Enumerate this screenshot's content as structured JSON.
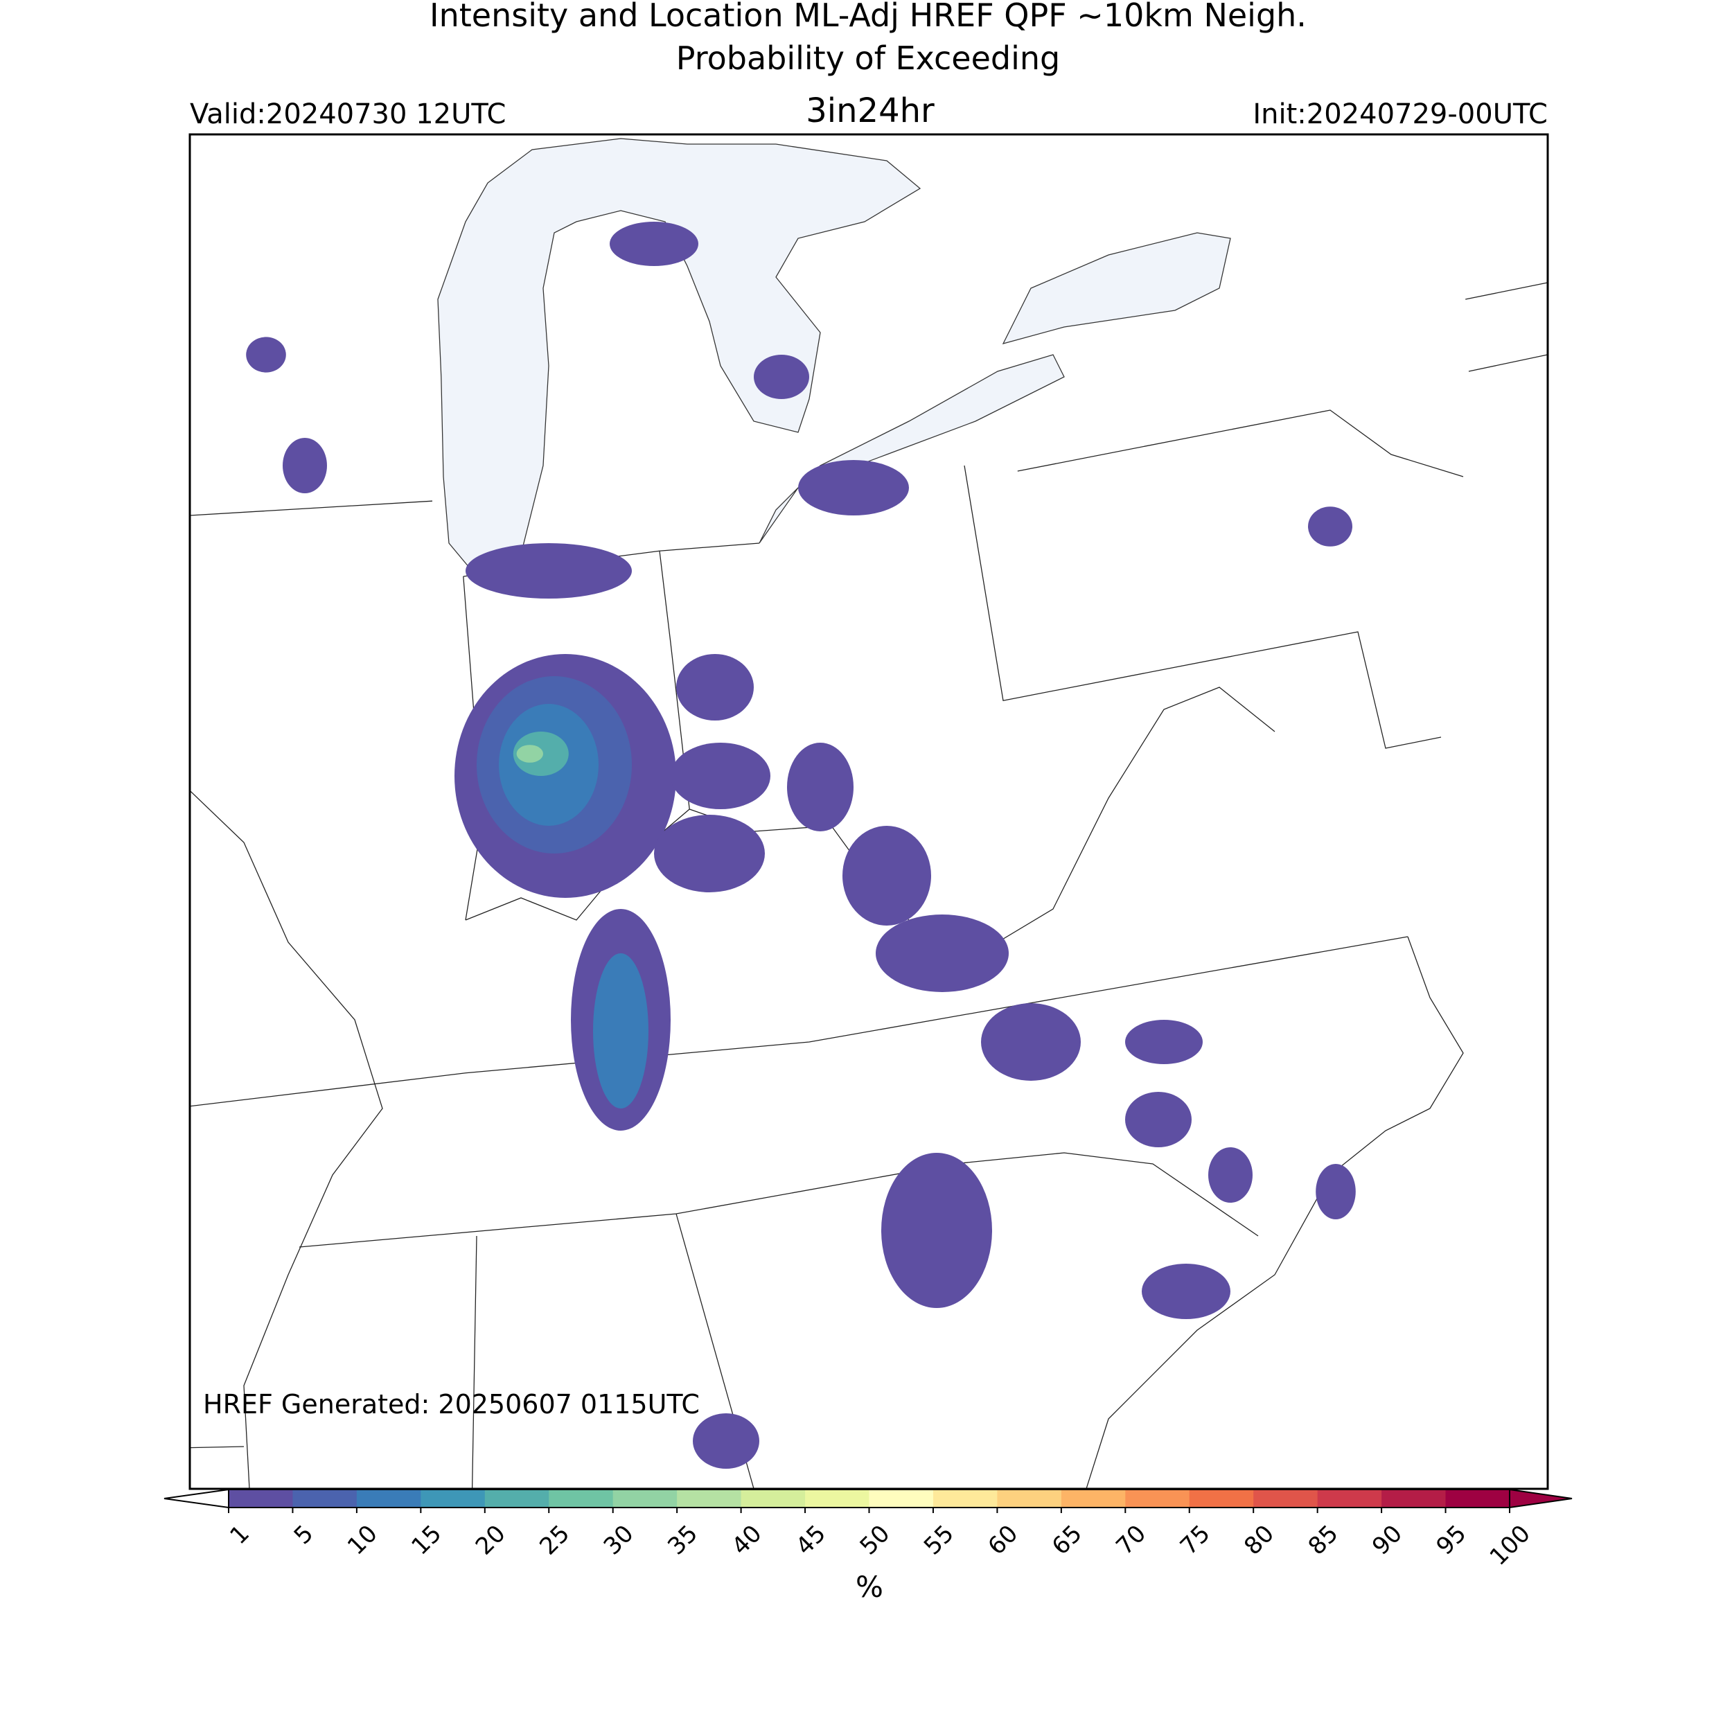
{
  "header": {
    "title_lines": [
      "Intensity and Location ML-Adj HREF QPF ~10km Neigh.",
      "Probability of Exceeding"
    ],
    "threshold": "3in24hr",
    "valid": "Valid:20240730 12UTC",
    "init": "Init:20240729-00UTC"
  },
  "map": {
    "generated": "HREF Generated: 20250607 0115UTC"
  },
  "colorbar": {
    "ticks": [
      1,
      5,
      10,
      15,
      20,
      25,
      30,
      35,
      40,
      45,
      50,
      55,
      60,
      65,
      70,
      75,
      80,
      85,
      90,
      95,
      100
    ],
    "colors": [
      "#5e4fa2",
      "#4b63ae",
      "#3a7cb8",
      "#3e97b7",
      "#54aeab",
      "#6fc4a4",
      "#92d3a4",
      "#b5e1a3",
      "#d5ee9b",
      "#ecf7a0",
      "#fffdbe",
      "#fee99a",
      "#fdd17f",
      "#fdb466",
      "#f99355",
      "#f17146",
      "#e0554a",
      "#ce3a4b",
      "#b41d47",
      "#9e0142"
    ],
    "under_color": "#ffffff",
    "over_color": "#9e0142",
    "label": "%"
  }
}
